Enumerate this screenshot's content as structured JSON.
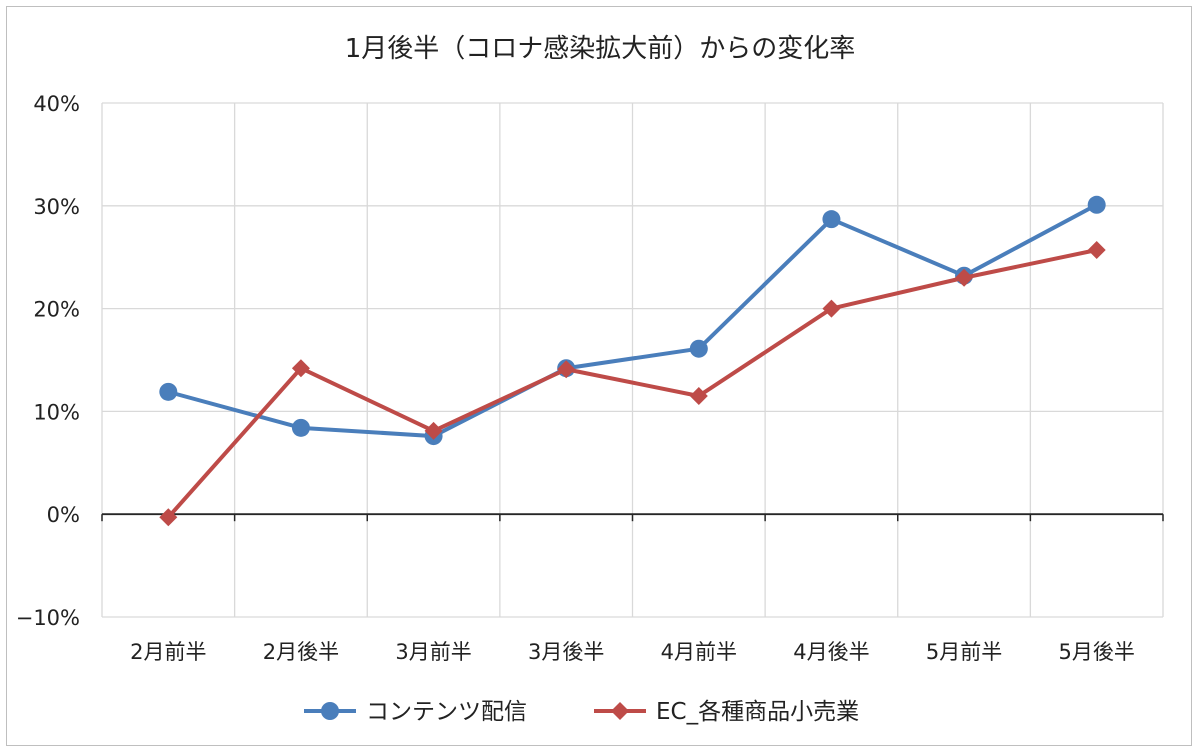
{
  "chart_data": {
    "type": "line",
    "title": "1月後半（コロナ感染拡大前）からの変化率",
    "xlabel": "",
    "ylabel": "",
    "categories": [
      "2月前半",
      "2月後半",
      "3月前半",
      "3月後半",
      "4月前半",
      "4月後半",
      "5月前半",
      "5月後半"
    ],
    "ylim": [
      -0.1,
      0.4
    ],
    "yticks": [
      -0.1,
      0.0,
      0.1,
      0.2,
      0.3,
      0.4
    ],
    "ytick_labels": [
      "−10%",
      "0%",
      "10%",
      "20%",
      "30%",
      "40%"
    ],
    "grid": true,
    "legend_position": "bottom",
    "series": [
      {
        "name": "コンテンツ配信",
        "color": "#4a7ebb",
        "marker": "circle",
        "values": [
          0.119,
          0.084,
          0.076,
          0.142,
          0.161,
          0.287,
          0.232,
          0.301
        ]
      },
      {
        "name": "EC_各種商品小売業",
        "color": "#be4b48",
        "marker": "diamond",
        "values": [
          -0.003,
          0.142,
          0.081,
          0.141,
          0.115,
          0.2,
          0.23,
          0.257
        ]
      }
    ]
  }
}
